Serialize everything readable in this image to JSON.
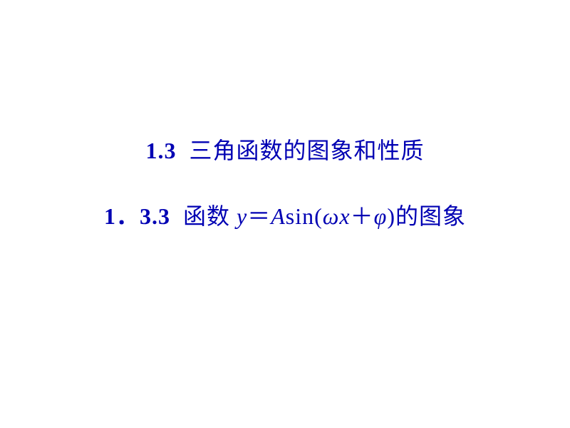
{
  "text_color": "#0000b3",
  "background_color": "#ffffff",
  "font_size": 32,
  "line1": {
    "section_number": "1.3",
    "title": "三角函数的图象和性质"
  },
  "line2": {
    "section_number": "1．3.3",
    "title_prefix": "函数 ",
    "formula": {
      "y": "y",
      "eq": "＝",
      "A": "A",
      "sin": "sin(",
      "omega": "ω",
      "x": "x",
      "plus": "＋",
      "phi": "φ",
      "close": ")"
    },
    "title_suffix": "的图象"
  }
}
